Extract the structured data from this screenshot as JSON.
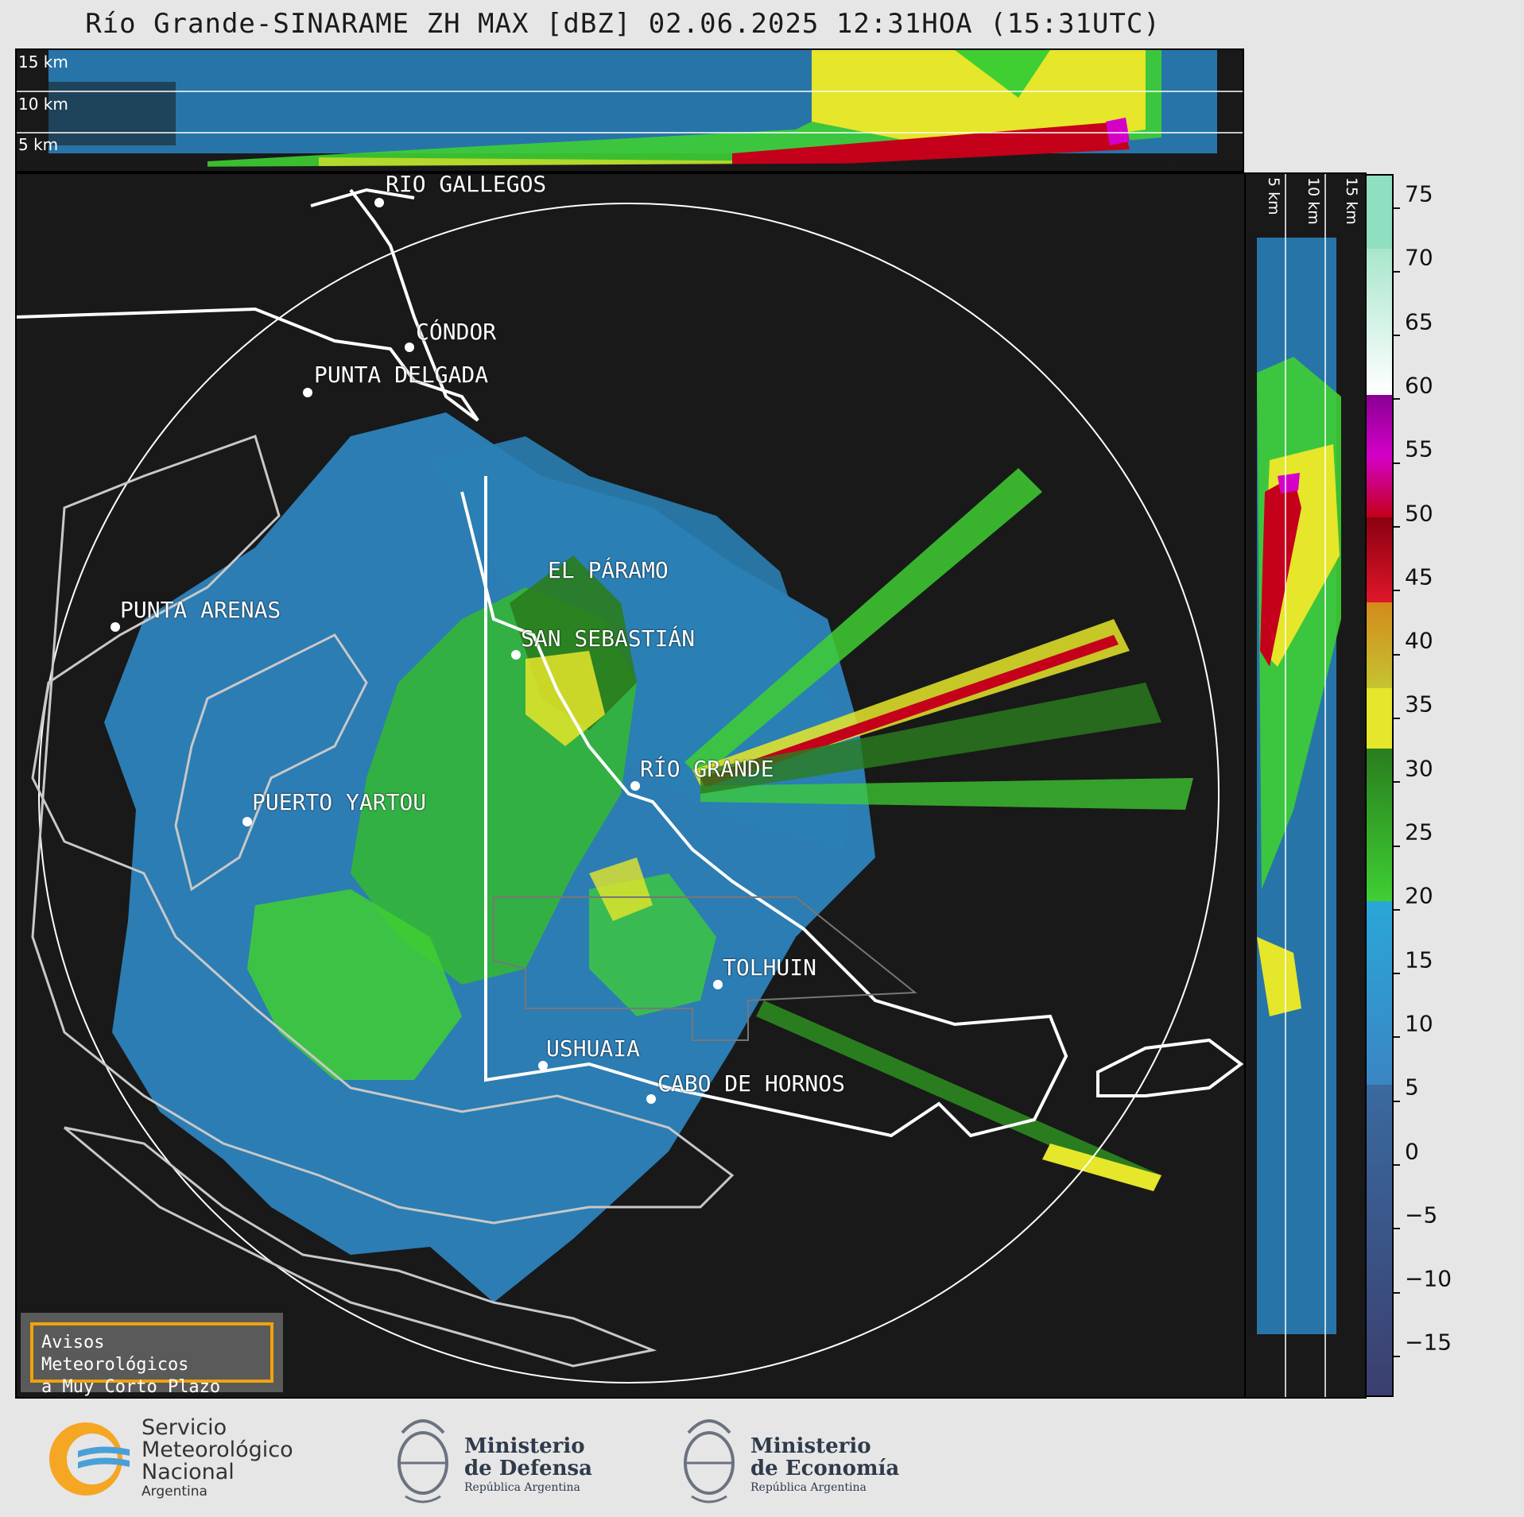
{
  "title": "Río Grande-SINARAME ZH MAX [dBZ] 02.06.2025 12:31HOA (15:31UTC)",
  "top_altitude_labels": [
    "15 km",
    "10 km",
    "5 km"
  ],
  "side_altitude_labels": [
    "5 km",
    "10 km",
    "15 km"
  ],
  "cities": [
    {
      "name": "RÍO GALLEGOS"
    },
    {
      "name": "CÓNDOR"
    },
    {
      "name": "PUNTA DELGADA"
    },
    {
      "name": "EL PÁRAMO"
    },
    {
      "name": "PUNTA ARENAS"
    },
    {
      "name": "SAN SEBASTIÁN"
    },
    {
      "name": "RÍO GRANDE"
    },
    {
      "name": "PUERTO YARTOU"
    },
    {
      "name": "TOLHUIN"
    },
    {
      "name": "USHUAIA"
    },
    {
      "name": "CABO DE HORNOS"
    }
  ],
  "colorbar": {
    "unit": "dBZ",
    "ticks": [
      "75",
      "70",
      "65",
      "60",
      "55",
      "50",
      "45",
      "40",
      "35",
      "30",
      "25",
      "20",
      "15",
      "10",
      "5",
      "0",
      "−5",
      "−10",
      "−15"
    ],
    "colors": {
      "low": "#3b3f6e",
      "mid_blue": "#3a86c4",
      "cyan": "#2aa6d8",
      "green": "#3fcf33",
      "dark_green": "#2a7d1e",
      "yellow": "#e6e62a",
      "orange": "#d48a1c",
      "red": "#c4001a",
      "magenta": "#d400c8",
      "purple": "#8a0094",
      "white": "#ffffff",
      "aqua": "#8fe0c0"
    }
  },
  "warning": {
    "line1": "Avisos Meteorológicos",
    "line2": "a Muy Corto Plazo"
  },
  "logos": {
    "smn": {
      "line1": "Servicio",
      "line2": "Meteorológico",
      "line3": "Nacional",
      "line4": "Argentina"
    },
    "defensa": {
      "line1": "Ministerio",
      "line2": "de Defensa",
      "line3": "República Argentina"
    },
    "economia": {
      "line1": "Ministerio",
      "line2": "de Economía",
      "line3": "República Argentina"
    }
  }
}
